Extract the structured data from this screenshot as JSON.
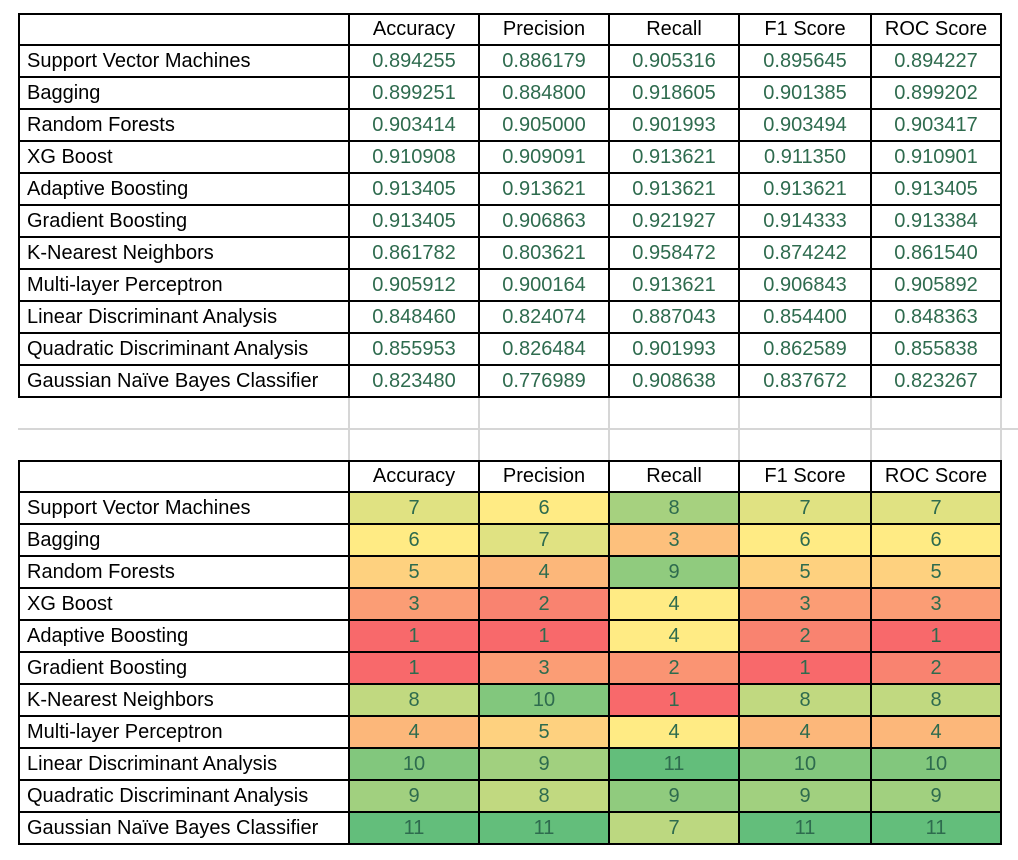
{
  "sheet": {
    "columns": [
      "Accuracy",
      "Precision",
      "Recall",
      "F1 Score",
      "ROC Score"
    ],
    "corner_label": "",
    "models": [
      "Support Vector Machines",
      "Bagging",
      "Random Forests",
      "XG Boost",
      "Adaptive Boosting",
      "Gradient Boosting",
      "K-Nearest Neighbors",
      "Multi-layer Perceptron",
      "Linear Discriminant Analysis",
      "Quadratic Discriminant Analysis",
      "Gaussian Naïve Bayes Classifier"
    ],
    "scores_table": {
      "text_color": "#2E6B4E",
      "rows": [
        [
          "0.894255",
          "0.886179",
          "0.905316",
          "0.895645",
          "0.894227"
        ],
        [
          "0.899251",
          "0.884800",
          "0.918605",
          "0.901385",
          "0.899202"
        ],
        [
          "0.903414",
          "0.905000",
          "0.901993",
          "0.903494",
          "0.903417"
        ],
        [
          "0.910908",
          "0.909091",
          "0.913621",
          "0.911350",
          "0.910901"
        ],
        [
          "0.913405",
          "0.913621",
          "0.913621",
          "0.913621",
          "0.913405"
        ],
        [
          "0.913405",
          "0.906863",
          "0.921927",
          "0.914333",
          "0.913384"
        ],
        [
          "0.861782",
          "0.803621",
          "0.958472",
          "0.874242",
          "0.861540"
        ],
        [
          "0.905912",
          "0.900164",
          "0.913621",
          "0.906843",
          "0.905892"
        ],
        [
          "0.848460",
          "0.824074",
          "0.887043",
          "0.854400",
          "0.848363"
        ],
        [
          "0.855953",
          "0.826484",
          "0.901993",
          "0.862589",
          "0.855838"
        ],
        [
          "0.823480",
          "0.776989",
          "0.908638",
          "0.837672",
          "0.823267"
        ]
      ]
    },
    "ranks_table": {
      "text_color": "#2E6B4E",
      "rows": [
        [
          "7",
          "6",
          "8",
          "7",
          "7"
        ],
        [
          "6",
          "7",
          "3",
          "6",
          "6"
        ],
        [
          "5",
          "4",
          "9",
          "5",
          "5"
        ],
        [
          "3",
          "2",
          "4",
          "3",
          "3"
        ],
        [
          "1",
          "1",
          "4",
          "2",
          "1"
        ],
        [
          "1",
          "3",
          "2",
          "1",
          "2"
        ],
        [
          "8",
          "10",
          "1",
          "8",
          "8"
        ],
        [
          "4",
          "5",
          "4",
          "4",
          "4"
        ],
        [
          "10",
          "9",
          "11",
          "10",
          "10"
        ],
        [
          "9",
          "8",
          "9",
          "9",
          "9"
        ],
        [
          "11",
          "11",
          "7",
          "11",
          "11"
        ]
      ],
      "fills": [
        [
          "#E0E282",
          "#FFEB84",
          "#A6D17F",
          "#E0E282",
          "#E0E282"
        ],
        [
          "#FFEB84",
          "#E0E282",
          "#FDC07C",
          "#FFEB84",
          "#FFEB84"
        ],
        [
          "#FED17F",
          "#FCB77A",
          "#90CB7E",
          "#FED17F",
          "#FED17F"
        ],
        [
          "#FB9D75",
          "#F98370",
          "#FFEB84",
          "#FB9D75",
          "#FB9D75"
        ],
        [
          "#F8696B",
          "#F8696B",
          "#FFEB84",
          "#F98370",
          "#F8696B"
        ],
        [
          "#F8696B",
          "#FB9D75",
          "#FA9473",
          "#F8696B",
          "#F98370"
        ],
        [
          "#C1D980",
          "#82C77D",
          "#F8696B",
          "#C1D980",
          "#C1D980"
        ],
        [
          "#FCB77A",
          "#FED17F",
          "#FFEB84",
          "#FCB77A",
          "#FCB77A"
        ],
        [
          "#82C77D",
          "#A1D07F",
          "#63BE7B",
          "#82C77D",
          "#82C77D"
        ],
        [
          "#A1D07F",
          "#C1D980",
          "#90CB7E",
          "#A1D07F",
          "#A1D07F"
        ],
        [
          "#63BE7B",
          "#63BE7B",
          "#BCD880",
          "#63BE7B",
          "#63BE7B"
        ]
      ]
    },
    "grid_color": "#D6D6D6",
    "border_color": "#000000"
  }
}
